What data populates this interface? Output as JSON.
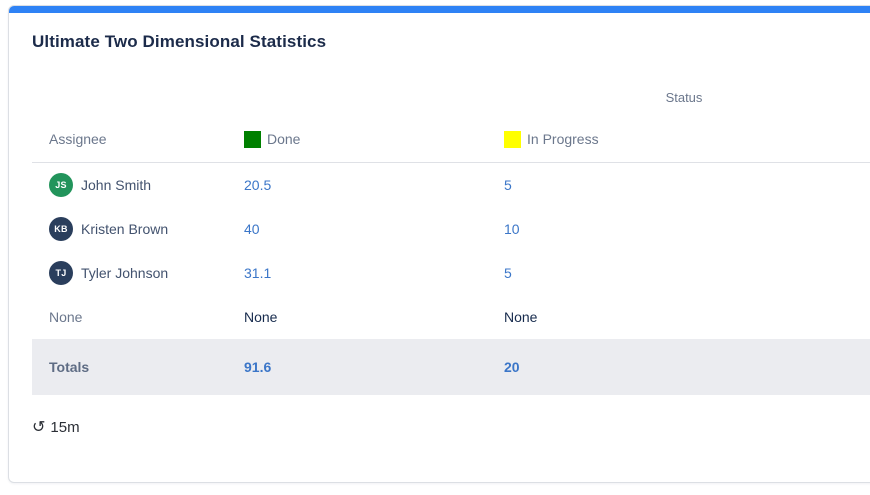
{
  "colors": {
    "accent_bar": "#2e82f5",
    "link_blue": "#3b76c8",
    "totals_bg": "#ebecf0"
  },
  "card": {
    "title": "Ultimate Two Dimensional Statistics",
    "table": {
      "group_header": "Status",
      "row_header": "Assignee",
      "columns": [
        {
          "label": "Done",
          "swatch": "#008000"
        },
        {
          "label": "In Progress",
          "swatch": "#ffff00"
        }
      ],
      "rows": [
        {
          "name": "John Smith",
          "initials": "JS",
          "avatar_color": "#22945b",
          "values": [
            "20.5",
            "5"
          ]
        },
        {
          "name": "Kristen Brown",
          "initials": "KB",
          "avatar_color": "#2a3e5c",
          "values": [
            "40",
            "10"
          ]
        },
        {
          "name": "Tyler Johnson",
          "initials": "TJ",
          "avatar_color": "#2a3e5c",
          "values": [
            "31.1",
            "5"
          ]
        },
        {
          "name": "None",
          "values": [
            "None",
            "None"
          ]
        }
      ],
      "totals": {
        "label": "Totals",
        "values": [
          "91.6",
          "20"
        ]
      }
    },
    "footer": {
      "refresh_icon": "↺",
      "refresh_interval": "15m"
    }
  }
}
